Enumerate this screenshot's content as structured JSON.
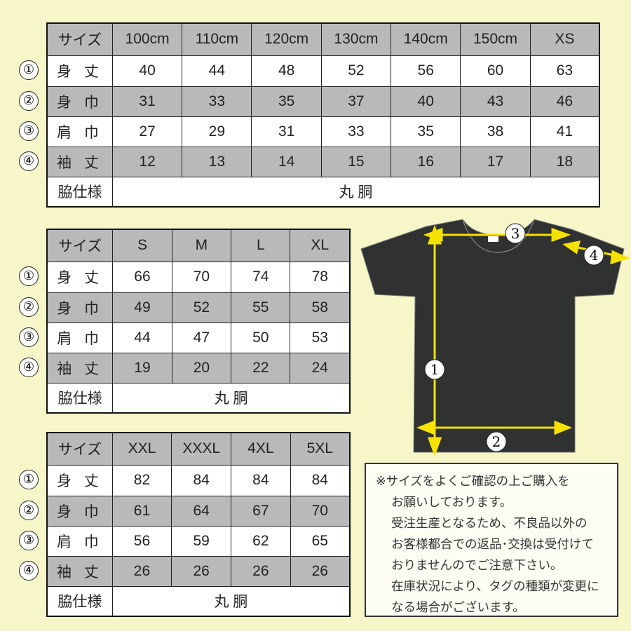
{
  "tables": [
    {
      "header": [
        "サイズ",
        "100cm",
        "110cm",
        "120cm",
        "130cm",
        "140cm",
        "150cm",
        "XS"
      ],
      "rows": [
        {
          "num": "①",
          "label": "身 丈",
          "values": [
            "40",
            "44",
            "48",
            "52",
            "56",
            "60",
            "63"
          ]
        },
        {
          "num": "②",
          "label": "身 巾",
          "values": [
            "31",
            "33",
            "35",
            "37",
            "40",
            "43",
            "46"
          ]
        },
        {
          "num": "③",
          "label": "肩 巾",
          "values": [
            "27",
            "29",
            "31",
            "33",
            "35",
            "38",
            "41"
          ]
        },
        {
          "num": "④",
          "label": "袖 丈",
          "values": [
            "12",
            "13",
            "14",
            "15",
            "16",
            "17",
            "18"
          ]
        }
      ],
      "side_label": "脇仕様",
      "side_value": "丸 胴"
    },
    {
      "header": [
        "サイズ",
        "S",
        "M",
        "L",
        "XL"
      ],
      "rows": [
        {
          "num": "①",
          "label": "身 丈",
          "values": [
            "66",
            "70",
            "74",
            "78"
          ]
        },
        {
          "num": "②",
          "label": "身 巾",
          "values": [
            "49",
            "52",
            "55",
            "58"
          ]
        },
        {
          "num": "③",
          "label": "肩 巾",
          "values": [
            "44",
            "47",
            "50",
            "53"
          ]
        },
        {
          "num": "④",
          "label": "袖 丈",
          "values": [
            "19",
            "20",
            "22",
            "24"
          ]
        }
      ],
      "side_label": "脇仕様",
      "side_value": "丸 胴"
    },
    {
      "header": [
        "サイズ",
        "XXL",
        "XXXL",
        "4XL",
        "5XL"
      ],
      "rows": [
        {
          "num": "①",
          "label": "身 丈",
          "values": [
            "82",
            "84",
            "84",
            "84"
          ]
        },
        {
          "num": "②",
          "label": "身 巾",
          "values": [
            "61",
            "64",
            "67",
            "70"
          ]
        },
        {
          "num": "③",
          "label": "肩 巾",
          "values": [
            "56",
            "59",
            "62",
            "65"
          ]
        },
        {
          "num": "④",
          "label": "袖 丈",
          "values": [
            "26",
            "26",
            "26",
            "26"
          ]
        }
      ],
      "side_label": "脇仕様",
      "side_value": "丸 胴"
    }
  ],
  "diagram": {
    "markers": [
      "1",
      "2",
      "3",
      "4"
    ],
    "shirt_color": "#2f3230",
    "arrow_color": "#f5e200"
  },
  "note": [
    "※サイズをよくご確認の上ご購入を",
    "お願いしております。",
    "受注生産となるため、不良品以外の",
    "お客様都合での返品･交換は受付けて",
    "おりませんのでご注意下さい。",
    "在庫状況により、タグの種類が変更に",
    "なる場合がございます。"
  ]
}
